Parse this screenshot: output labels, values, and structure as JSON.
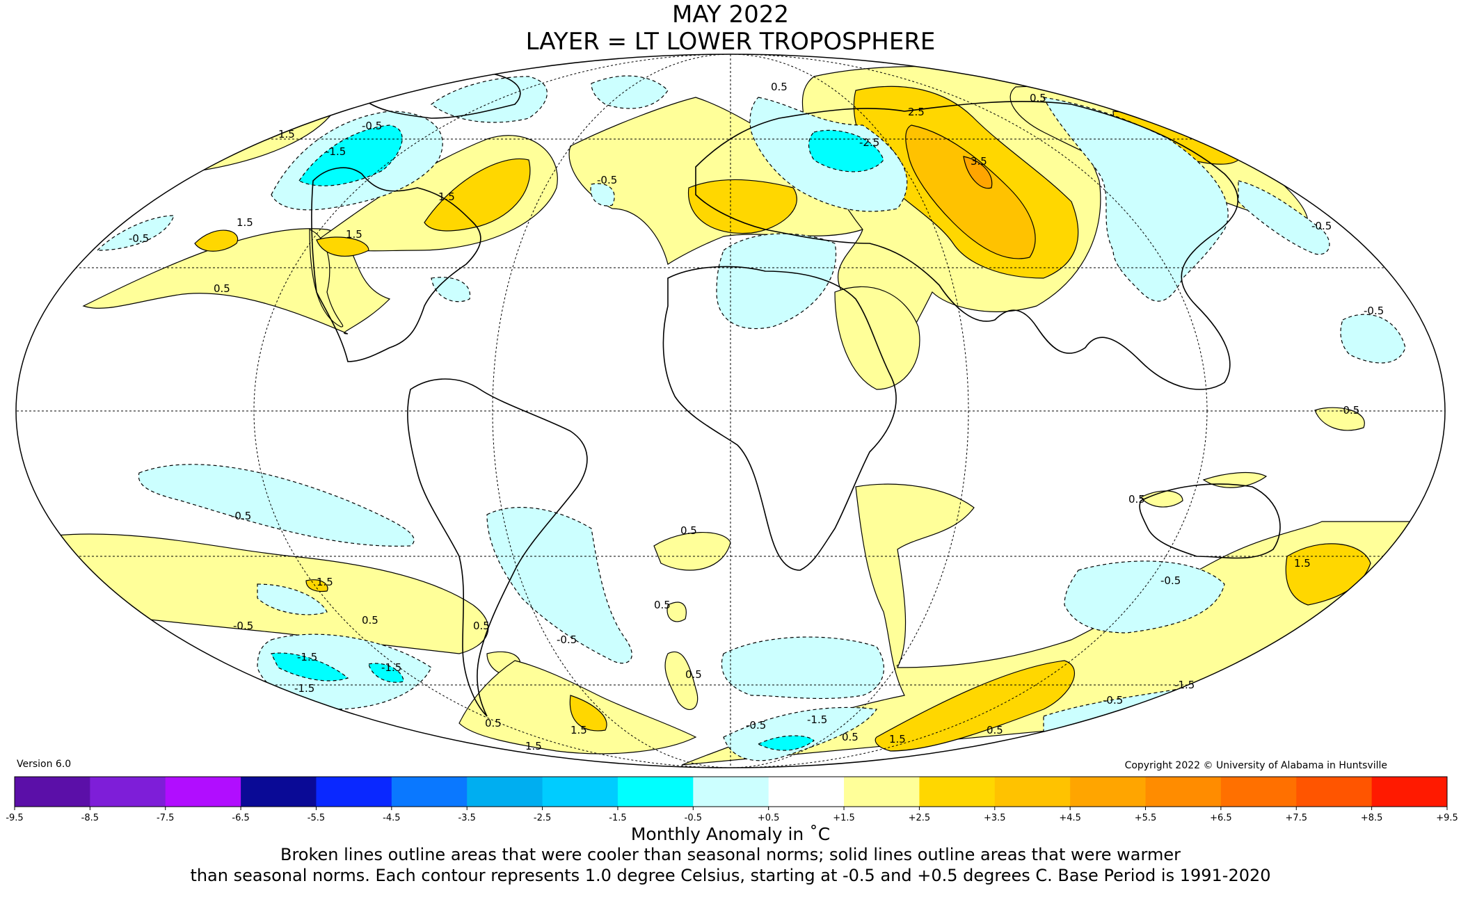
{
  "title": {
    "line1": "MAY 2022",
    "line2": "LAYER = LT LOWER TROPOSPHERE"
  },
  "footer": {
    "version": "Version 6.0",
    "copyright": "Copyright 2022 © University of Alabama in Huntsville",
    "colorbar_title": "Monthly Anomaly in ˚C",
    "note_line1": "Broken lines outline areas that were cooler than seasonal norms; solid lines outline areas that were warmer",
    "note_line2": "than seasonal norms. Each contour represents 1.0 degree Celsius, starting at -0.5 and +0.5 degrees C. Base Period is 1991-2020"
  },
  "colorbar": {
    "ticks": [
      "-9.5",
      "-8.5",
      "-7.5",
      "-6.5",
      "-5.5",
      "-4.5",
      "-3.5",
      "-2.5",
      "-1.5",
      "-0.5",
      "+0.5",
      "+1.5",
      "+2.5",
      "+3.5",
      "+4.5",
      "+5.5",
      "+6.5",
      "+7.5",
      "+8.5",
      "+9.5"
    ],
    "colors": [
      "#2a0a5e",
      "#5b0fa8",
      "#7e1ed8",
      "#b10dff",
      "#0a0a96",
      "#0a28ff",
      "#0a78ff",
      "#00aef0",
      "#00ccff",
      "#00ffff",
      "#ccffff",
      "#ffffff",
      "#ffff99",
      "#ffd700",
      "#ffc200",
      "#ffa500",
      "#ff8c00",
      "#ff7000",
      "#ff5500",
      "#ff1a00",
      "#dd0000",
      "#b30000"
    ]
  },
  "map_legend": {
    "contour_labels": [
      "0.5",
      "-0.5",
      "1.5",
      "-1.5",
      "2.5",
      "-2.5",
      "3.5"
    ]
  }
}
